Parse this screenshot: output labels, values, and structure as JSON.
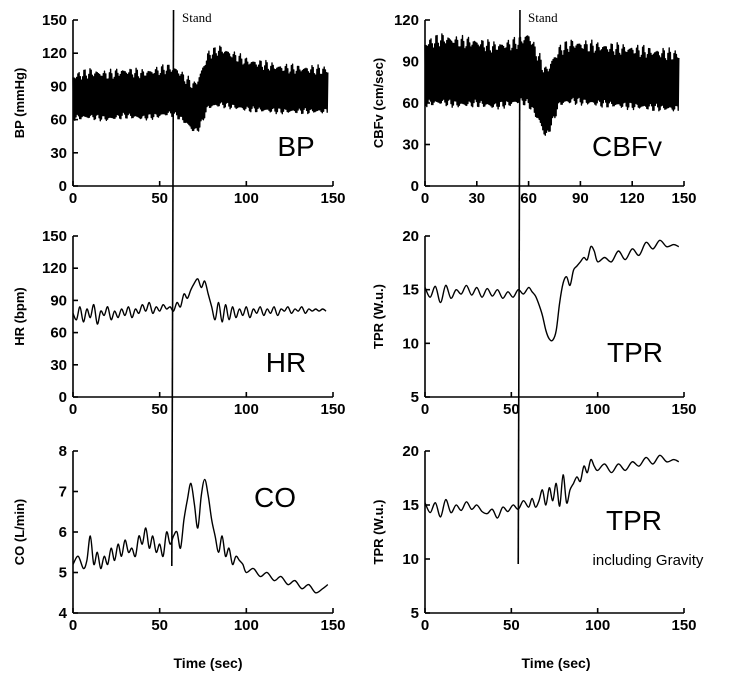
{
  "chart_data": [
    {
      "id": "bp",
      "type": "line",
      "ylabel": "BP (mmHg)",
      "label": "BP",
      "xlim": [
        0,
        150
      ],
      "ylim": [
        0,
        150
      ],
      "xticks": [
        0,
        50,
        100,
        150
      ],
      "yticks": [
        0,
        30,
        60,
        90,
        120,
        150
      ],
      "annotation": "Stand",
      "event_x": 58,
      "event_x_bottom": 59,
      "series": [
        {
          "style": "band",
          "x": [
            0,
            10,
            20,
            30,
            40,
            50,
            55,
            60,
            65,
            70,
            73,
            78,
            85,
            100,
            120,
            147
          ],
          "upper": [
            98,
            102,
            100,
            103,
            101,
            104,
            106,
            104,
            96,
            90,
            98,
            118,
            123,
            112,
            106,
            104
          ],
          "lower": [
            62,
            63,
            61,
            64,
            62,
            64,
            66,
            64,
            58,
            50,
            53,
            72,
            74,
            70,
            68,
            68
          ]
        }
      ]
    },
    {
      "id": "cbfv",
      "type": "line",
      "ylabel": "CBFv (cm/sec)",
      "label": "CBFv",
      "xlim": [
        0,
        150
      ],
      "ylim": [
        0,
        120
      ],
      "xticks": [
        0,
        30,
        60,
        90,
        120,
        150
      ],
      "yticks": [
        0,
        30,
        60,
        90,
        120
      ],
      "annotation": "Stand",
      "event_x": 55,
      "event_x_bottom": 55,
      "series": [
        {
          "style": "band",
          "x": [
            0,
            10,
            20,
            30,
            40,
            50,
            55,
            60,
            62,
            66,
            70,
            73,
            78,
            85,
            100,
            120,
            147
          ],
          "upper": [
            102,
            106,
            104,
            103,
            100,
            102,
            104,
            108,
            103,
            92,
            82,
            88,
            98,
            102,
            100,
            98,
            94
          ],
          "lower": [
            60,
            61,
            59,
            60,
            58,
            60,
            62,
            60,
            56,
            48,
            36,
            44,
            60,
            62,
            60,
            58,
            56
          ]
        }
      ]
    },
    {
      "id": "hr",
      "type": "line",
      "ylabel": "HR (bpm)",
      "label": "HR",
      "xlim": [
        0,
        150
      ],
      "ylim": [
        0,
        150
      ],
      "xticks": [
        0,
        50,
        100,
        150
      ],
      "yticks": [
        0,
        30,
        60,
        90,
        120,
        150
      ],
      "event_x": 57,
      "series": [
        {
          "style": "line",
          "x": [
            0,
            2,
            4,
            6,
            8,
            10,
            12,
            14,
            16,
            18,
            20,
            22,
            24,
            26,
            28,
            30,
            32,
            34,
            36,
            38,
            40,
            42,
            44,
            46,
            48,
            50,
            52,
            54,
            56,
            58,
            60,
            62,
            64,
            66,
            68,
            70,
            72,
            74,
            76,
            78,
            80,
            82,
            84,
            86,
            88,
            90,
            92,
            94,
            96,
            98,
            100,
            102,
            104,
            106,
            108,
            110,
            112,
            114,
            116,
            118,
            120,
            122,
            124,
            126,
            128,
            130,
            132,
            134,
            136,
            138,
            140,
            142,
            144,
            146
          ],
          "y": [
            78,
            72,
            84,
            70,
            82,
            74,
            86,
            68,
            80,
            76,
            84,
            72,
            80,
            74,
            82,
            76,
            84,
            74,
            82,
            78,
            86,
            80,
            88,
            78,
            84,
            80,
            86,
            82,
            84,
            80,
            88,
            84,
            96,
            92,
            100,
            106,
            110,
            102,
            108,
            96,
            84,
            72,
            88,
            70,
            86,
            72,
            84,
            74,
            82,
            76,
            84,
            74,
            82,
            78,
            84,
            76,
            82,
            78,
            84,
            76,
            82,
            80,
            84,
            78,
            82,
            80,
            84,
            78,
            82,
            80,
            82,
            80,
            82,
            80
          ]
        }
      ]
    },
    {
      "id": "tpr1",
      "type": "line",
      "ylabel": "TPR (W.u.)",
      "label": "TPR",
      "xlim": [
        0,
        150
      ],
      "ylim": [
        5,
        20
      ],
      "xticks": [
        0,
        50,
        100,
        150
      ],
      "yticks": [
        5,
        10,
        15,
        20
      ],
      "event_x": 54,
      "event_x_top": 55,
      "series": [
        {
          "style": "line",
          "x": [
            0,
            3,
            6,
            9,
            12,
            15,
            18,
            21,
            24,
            27,
            30,
            33,
            36,
            39,
            42,
            45,
            48,
            51,
            54,
            57,
            60,
            62,
            64,
            66,
            68,
            70,
            72,
            74,
            76,
            78,
            80,
            82,
            84,
            86,
            88,
            90,
            92,
            94,
            96,
            98,
            100,
            104,
            108,
            112,
            116,
            120,
            124,
            128,
            132,
            136,
            140,
            144,
            147
          ],
          "y": [
            15.2,
            14.3,
            15.3,
            13.8,
            15.4,
            14.2,
            15.0,
            14.6,
            15.4,
            14.5,
            15.2,
            14.3,
            15.1,
            14.4,
            15.0,
            14.2,
            14.8,
            14.3,
            15.0,
            14.6,
            15.2,
            14.8,
            14.4,
            13.6,
            12.6,
            11.2,
            10.4,
            10.3,
            11.2,
            13.8,
            15.6,
            16.2,
            15.4,
            16.8,
            17.2,
            17.6,
            18.0,
            17.8,
            19.0,
            18.6,
            17.6,
            18.0,
            17.6,
            18.6,
            17.8,
            18.8,
            18.2,
            19.4,
            18.8,
            19.6,
            19.0,
            19.2,
            19.0
          ]
        }
      ]
    },
    {
      "id": "co",
      "type": "line",
      "ylabel": "CO (L/min)",
      "label": "CO",
      "xlim": [
        0,
        150
      ],
      "ylim": [
        4,
        8
      ],
      "xticks": [
        0,
        50,
        100,
        150
      ],
      "yticks": [
        4,
        5,
        6,
        7,
        8
      ],
      "event_x_top": 58,
      "event_x_bottom": 57,
      "series": [
        {
          "style": "line",
          "x": [
            0,
            3,
            6,
            8,
            10,
            12,
            14,
            16,
            18,
            20,
            22,
            24,
            26,
            28,
            30,
            32,
            34,
            36,
            38,
            40,
            42,
            44,
            46,
            48,
            50,
            52,
            54,
            56,
            58,
            60,
            62,
            64,
            66,
            68,
            70,
            72,
            74,
            76,
            78,
            80,
            82,
            84,
            86,
            88,
            90,
            92,
            94,
            96,
            98,
            100,
            104,
            108,
            112,
            116,
            120,
            124,
            128,
            132,
            136,
            140,
            144,
            147
          ],
          "y": [
            5.2,
            5.4,
            5.1,
            5.3,
            5.9,
            5.2,
            5.5,
            5.1,
            5.4,
            5.2,
            5.6,
            5.3,
            5.7,
            5.4,
            5.8,
            5.5,
            5.6,
            5.4,
            5.9,
            5.7,
            6.1,
            5.6,
            5.9,
            5.5,
            5.7,
            5.4,
            6.0,
            5.7,
            5.9,
            6.0,
            5.6,
            6.3,
            6.8,
            7.2,
            6.7,
            6.1,
            6.9,
            7.3,
            6.9,
            6.3,
            5.9,
            5.5,
            5.9,
            5.4,
            5.6,
            5.2,
            5.4,
            5.3,
            5.2,
            5.0,
            5.1,
            4.9,
            5.0,
            4.8,
            4.9,
            4.7,
            4.8,
            4.6,
            4.7,
            4.5,
            4.6,
            4.7
          ]
        }
      ]
    },
    {
      "id": "tpr2",
      "type": "line",
      "ylabel": "TPR (W.u.)",
      "label": "TPR",
      "sublabel": "including Gravity",
      "xlim": [
        0,
        150
      ],
      "ylim": [
        5,
        20
      ],
      "xticks": [
        0,
        50,
        100,
        150
      ],
      "yticks": [
        5,
        10,
        15,
        20
      ],
      "event_x_top": 55,
      "event_x_bottom": 54,
      "series": [
        {
          "style": "line",
          "x": [
            0,
            3,
            6,
            9,
            12,
            15,
            18,
            21,
            24,
            27,
            30,
            33,
            36,
            39,
            42,
            45,
            48,
            51,
            54,
            57,
            60,
            62,
            64,
            66,
            68,
            70,
            72,
            74,
            76,
            78,
            80,
            82,
            84,
            86,
            88,
            90,
            92,
            94,
            96,
            98,
            100,
            104,
            108,
            112,
            116,
            120,
            124,
            128,
            132,
            136,
            140,
            144,
            147
          ],
          "y": [
            15.2,
            14.3,
            15.2,
            13.9,
            15.5,
            14.3,
            15.0,
            14.5,
            15.3,
            14.6,
            15.0,
            14.4,
            14.2,
            14.6,
            13.8,
            14.8,
            14.4,
            15.0,
            14.6,
            15.4,
            14.8,
            15.6,
            14.8,
            15.4,
            16.4,
            15.0,
            16.6,
            15.4,
            17.0,
            14.9,
            17.8,
            15.2,
            16.4,
            17.0,
            17.6,
            17.2,
            18.6,
            18.0,
            19.2,
            18.6,
            18.2,
            18.8,
            18.0,
            18.8,
            18.2,
            19.0,
            18.6,
            19.4,
            18.8,
            19.6,
            19.0,
            19.2,
            19.0
          ]
        }
      ]
    }
  ],
  "xlabel": "Time (sec)"
}
